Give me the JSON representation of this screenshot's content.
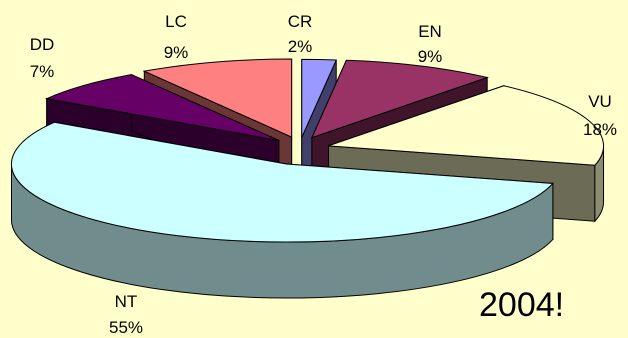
{
  "chart_data": {
    "type": "pie",
    "style": "3d-exploded",
    "year_label": "2004!",
    "slices": [
      {
        "category": "CR",
        "percent_label": "2%",
        "value": 2,
        "color": "#9999ff"
      },
      {
        "category": "EN",
        "percent_label": "9%",
        "value": 9,
        "color": "#993366"
      },
      {
        "category": "VU",
        "percent_label": "18%",
        "value": 18,
        "color": "#ffffcc"
      },
      {
        "category": "NT",
        "percent_label": "55%",
        "value": 55,
        "color": "#ccffff"
      },
      {
        "category": "DD",
        "percent_label": "7%",
        "value": 7,
        "color": "#660066"
      },
      {
        "category": "LC",
        "percent_label": "9%",
        "value": 9,
        "color": "#ff8080"
      }
    ],
    "legend": "none",
    "background": "#ffffcc"
  }
}
